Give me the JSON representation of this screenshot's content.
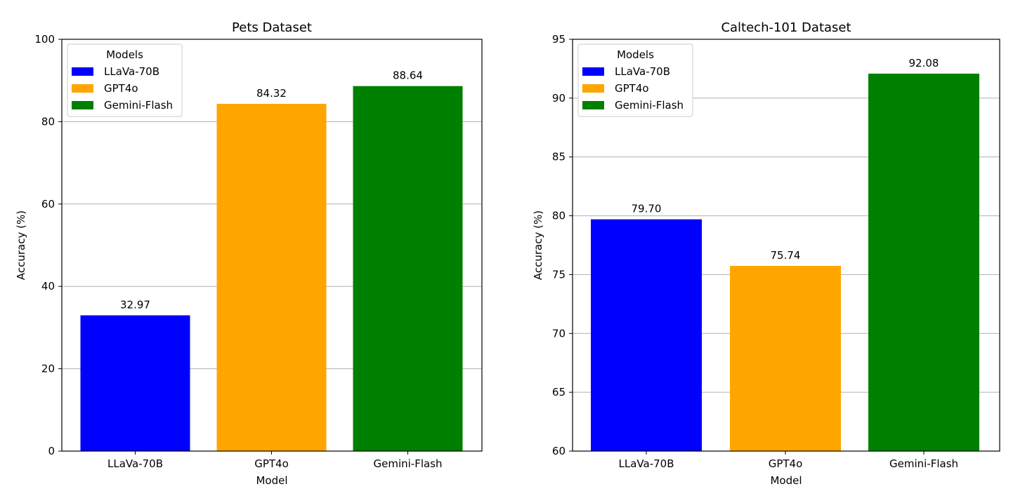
{
  "chart_data": [
    {
      "type": "bar",
      "title": "Pets Dataset",
      "xlabel": "Model",
      "ylabel": "Accuracy (%)",
      "categories": [
        "LLaVa-70B",
        "GPT4o",
        "Gemini-Flash"
      ],
      "values": [
        32.97,
        84.32,
        88.64
      ],
      "value_labels": [
        "32.97",
        "84.32",
        "88.64"
      ],
      "colors": [
        "#0000ff",
        "#ffa500",
        "#008000"
      ],
      "ylim": [
        0,
        100
      ],
      "yticks": [
        0,
        20,
        40,
        60,
        80,
        100
      ],
      "grid": "y",
      "legend": {
        "title": "Models",
        "placement": "top-left",
        "entries": [
          "LLaVa-70B",
          "GPT4o",
          "Gemini-Flash"
        ]
      }
    },
    {
      "type": "bar",
      "title": "Caltech-101 Dataset",
      "xlabel": "Model",
      "ylabel": "Accuracy (%)",
      "categories": [
        "LLaVa-70B",
        "GPT4o",
        "Gemini-Flash"
      ],
      "values": [
        79.7,
        75.74,
        92.08
      ],
      "value_labels": [
        "79.70",
        "75.74",
        "92.08"
      ],
      "colors": [
        "#0000ff",
        "#ffa500",
        "#008000"
      ],
      "ylim": [
        60,
        95
      ],
      "yticks": [
        60,
        65,
        70,
        75,
        80,
        85,
        90,
        95
      ],
      "grid": "y",
      "legend": {
        "title": "Models",
        "placement": "top-left",
        "entries": [
          "LLaVa-70B",
          "GPT4o",
          "Gemini-Flash"
        ]
      }
    }
  ]
}
